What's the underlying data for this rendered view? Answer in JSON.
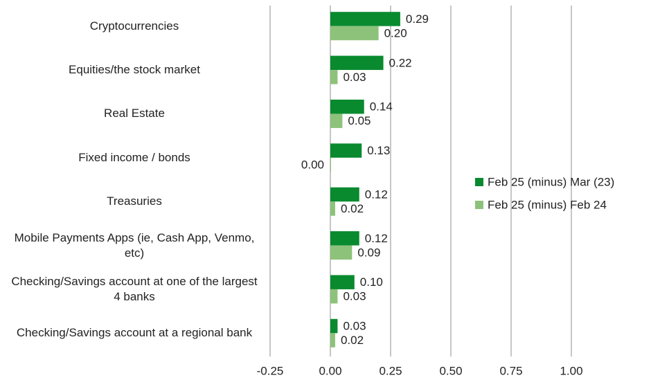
{
  "chart_data": {
    "type": "barh",
    "categories": [
      "Cryptocurrencies",
      "Equities/the stock market",
      "Real Estate",
      "Fixed income / bonds",
      "Treasuries",
      "Mobile Payments Apps (ie, Cash App, Venmo, etc)",
      "Checking/Savings account at one of the largest 4 banks",
      "Checking/Savings account at a regional bank"
    ],
    "series": [
      {
        "name": "Feb 25 (minus) Mar (23)",
        "color": "#0a8a2f",
        "values": [
          0.29,
          0.22,
          0.14,
          0.13,
          0.12,
          0.12,
          0.1,
          0.03
        ],
        "value_labels": [
          "0.29",
          "0.22",
          "0.14",
          "0.13",
          "0.12",
          "0.12",
          "0.10",
          "0.03"
        ]
      },
      {
        "name": "Feb 25 (minus) Feb 24",
        "color": "#8dc27b",
        "values": [
          0.2,
          0.03,
          0.05,
          0.0,
          0.02,
          0.09,
          0.03,
          0.02
        ],
        "value_labels": [
          "0.20",
          "0.03",
          "0.05",
          "0.00",
          "0.02",
          "0.09",
          "0.03",
          "0.02"
        ]
      }
    ],
    "xlim": [
      -0.25,
      1.0
    ],
    "xticks": [
      {
        "value": -0.25,
        "label": "-0.25"
      },
      {
        "value": 0,
        "label": "0.00"
      },
      {
        "value": 0.25,
        "label": "0.25"
      },
      {
        "value": 0.5,
        "label": "0.50"
      },
      {
        "value": 0.75,
        "label": "0.75"
      },
      {
        "value": 1.0,
        "label": "1.00"
      }
    ],
    "grid": true,
    "legend": "right"
  }
}
